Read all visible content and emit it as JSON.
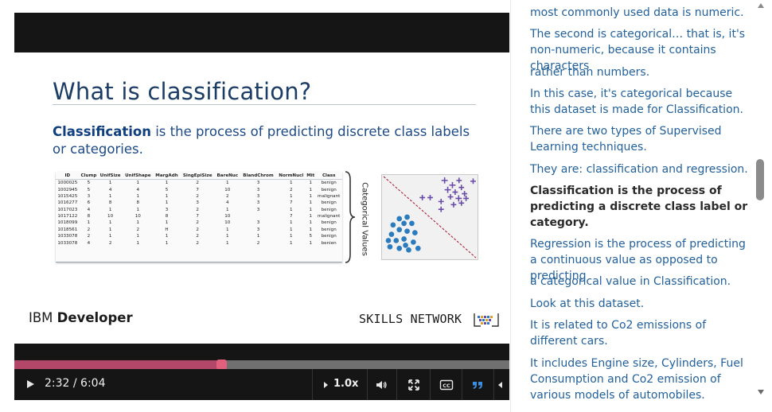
{
  "slide": {
    "title": "What is classification?",
    "definition_term": "Classification",
    "definition_rest": " is the process of predicting discrete class labels or categories.",
    "categorical_label": "Categorical Values",
    "brand_left_light": "IBM ",
    "brand_left_bold": "Developer",
    "brand_right": "SKILLS NETWORK"
  },
  "table": {
    "headers": [
      "ID",
      "Clump",
      "UnifSize",
      "UnifShape",
      "MargAdh",
      "SingEpiSize",
      "BareNuc",
      "BlandChrom",
      "NormNucl",
      "Mit",
      "Class"
    ],
    "rows": [
      [
        "1000025",
        "5",
        "1",
        "1",
        "1",
        "2",
        "1",
        "3",
        "1",
        "1",
        "benign"
      ],
      [
        "1002945",
        "5",
        "4",
        "4",
        "5",
        "7",
        "10",
        "3",
        "2",
        "1",
        "benign"
      ],
      [
        "1015425",
        "3",
        "1",
        "1",
        "1",
        "2",
        "2",
        "3",
        "1",
        "1",
        "malignant"
      ],
      [
        "1016277",
        "6",
        "8",
        "8",
        "1",
        "3",
        "4",
        "3",
        "7",
        "1",
        "benign"
      ],
      [
        "1017023",
        "4",
        "1",
        "1",
        "3",
        "2",
        "1",
        "3",
        "1",
        "1",
        "benign"
      ],
      [
        "1017122",
        "8",
        "10",
        "10",
        "8",
        "7",
        "10",
        "",
        "7",
        "1",
        "malignant"
      ],
      [
        "1018099",
        "1",
        "1",
        "1",
        "1",
        "2",
        "10",
        "3",
        "1",
        "1",
        "benign"
      ],
      [
        "1018561",
        "2",
        "1",
        "2",
        "H",
        "2",
        "1",
        "3",
        "1",
        "1",
        "benign"
      ],
      [
        "1033078",
        "2",
        "1",
        "1",
        "1",
        "2",
        "1",
        "1",
        "1",
        "5",
        "benign"
      ],
      [
        "1033078",
        "4",
        "2",
        "1",
        "1",
        "2",
        "1",
        "2",
        "1",
        "1",
        "benien"
      ]
    ]
  },
  "player": {
    "time_current": "2:32",
    "time_total": "6:04",
    "time_display": "2:32 / 6:04",
    "progress": 0.418,
    "speed": "1.0x",
    "accent_color": "#e1607d"
  },
  "transcript": {
    "cues": [
      {
        "text": "most commonly used data is numeric.",
        "active": false
      },
      {
        "text": "The second is categorical… that is, it's non-numeric, because it contains characters",
        "active": false
      },
      {
        "text": "rather than numbers.",
        "active": false
      },
      {
        "text": "In this case, it's categorical because this dataset is made for Classification.",
        "active": false
      },
      {
        "text": "There are two types of Supervised Learning techniques.",
        "active": false
      },
      {
        "text": "They are: classification and regression.",
        "active": false
      },
      {
        "text": "Classification is the process of predicting a discrete class label or category.",
        "active": true
      },
      {
        "text": "Regression is the process of predicting a continuous value as opposed to predicting",
        "active": false
      },
      {
        "text": "a categorical value in Classification.",
        "active": false
      },
      {
        "text": "Look at this dataset.",
        "active": false
      },
      {
        "text": "It is related to Co2 emissions of different cars.",
        "active": false
      },
      {
        "text": "It includes Engine size, Cylinders, Fuel Consumption and Co2 emission of various models of automobiles.",
        "active": false
      }
    ]
  }
}
